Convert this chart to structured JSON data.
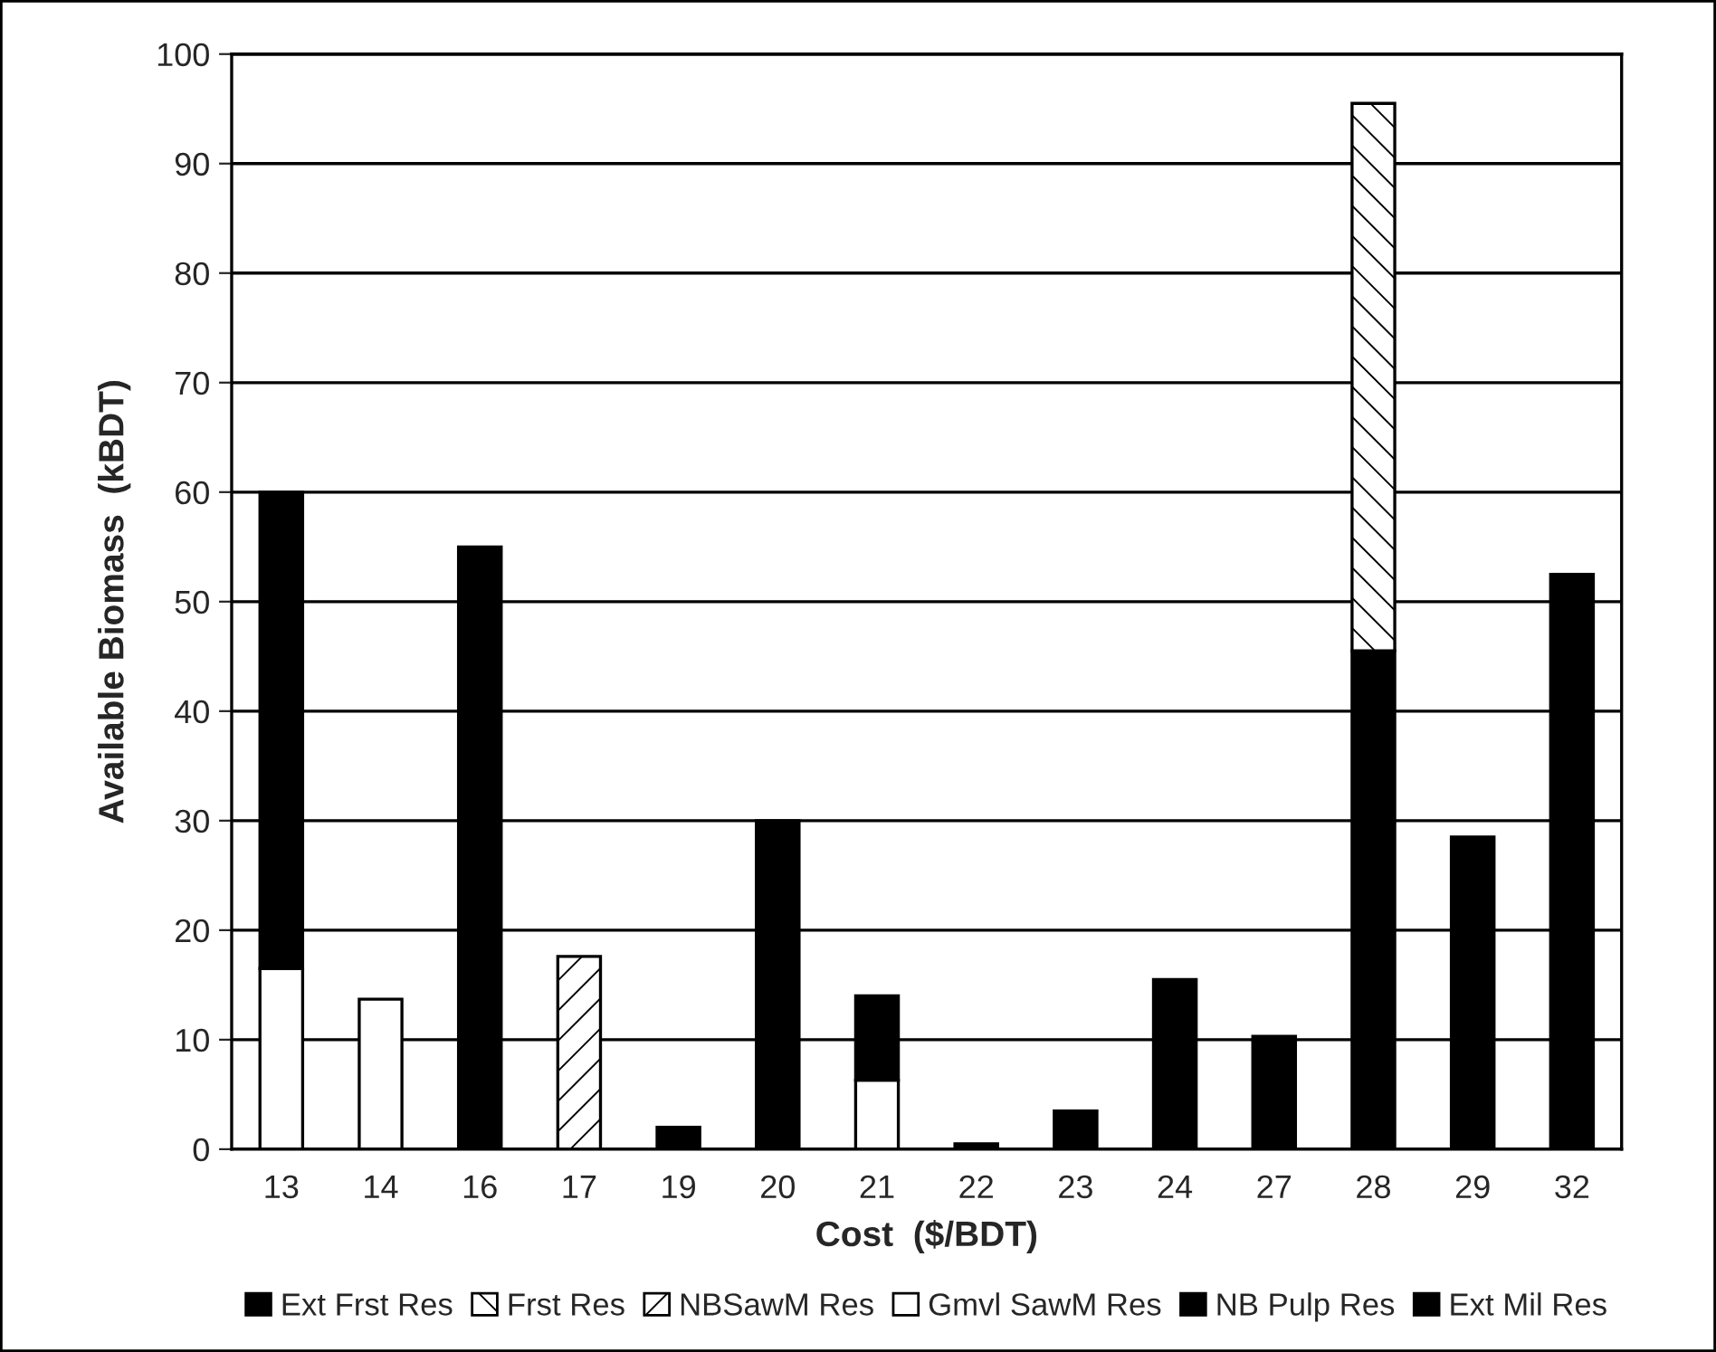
{
  "chart_data": {
    "type": "bar",
    "stacked": true,
    "xlabel": "Cost  ($/BDT)",
    "ylabel": "Available Biomass  (kBDT)",
    "categories": [
      "13",
      "14",
      "16",
      "17",
      "19",
      "20",
      "21",
      "22",
      "23",
      "24",
      "27",
      "28",
      "29",
      "32"
    ],
    "series": [
      {
        "name": "Ext Frst Res",
        "color": "#000000",
        "values": [
          null,
          null,
          55,
          null,
          null,
          null,
          null,
          null,
          null,
          null,
          null,
          45.5,
          null,
          null
        ]
      },
      {
        "name": "Frst Res",
        "color": "#000000",
        "values": [
          null,
          null,
          null,
          null,
          null,
          null,
          null,
          null,
          null,
          null,
          null,
          50,
          null,
          null
        ]
      },
      {
        "name": "NBSawM Res",
        "color": "#000000",
        "values": [
          null,
          null,
          null,
          17.6,
          null,
          null,
          null,
          null,
          null,
          null,
          null,
          null,
          null,
          null
        ]
      },
      {
        "name": "Gmvl SawM Res",
        "color": "#ffffff",
        "values": [
          16.5,
          13.7,
          null,
          null,
          null,
          null,
          6.3,
          null,
          null,
          null,
          null,
          null,
          null,
          null
        ]
      },
      {
        "name": "NB Pulp Res",
        "color": "#000000",
        "values": [
          43.5,
          null,
          null,
          null,
          2,
          null,
          null,
          0.5,
          null,
          15.5,
          10.3,
          null,
          28.5,
          null
        ]
      },
      {
        "name": "Ext Mil Res",
        "color": "#000000",
        "values": [
          null,
          null,
          null,
          null,
          null,
          30,
          7.7,
          null,
          3.5,
          null,
          null,
          null,
          null,
          52.5
        ]
      }
    ],
    "ylim": [
      0,
      100
    ],
    "yticks": [
      0,
      10,
      20,
      30,
      40,
      50,
      60,
      70,
      80,
      90,
      100
    ],
    "grid": "y",
    "legend": "bottom"
  }
}
